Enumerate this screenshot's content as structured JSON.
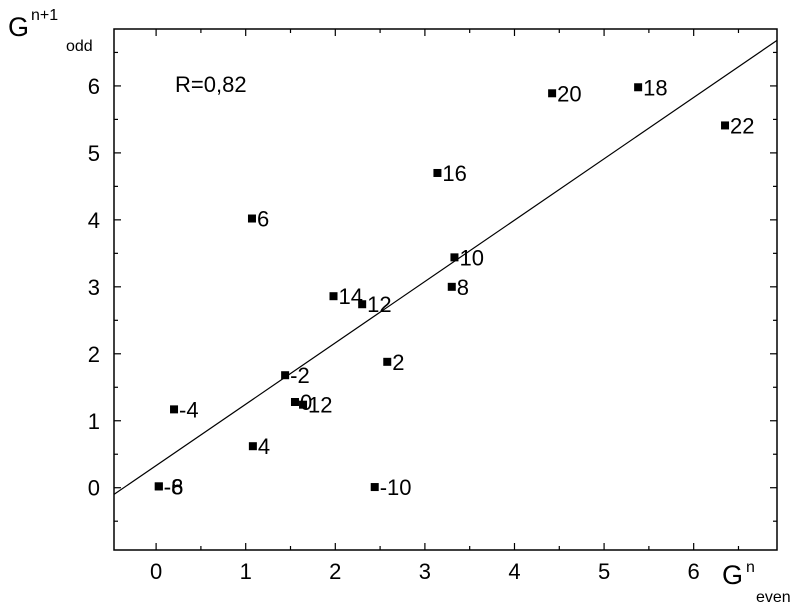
{
  "chart_data": {
    "type": "scatter",
    "title": "",
    "xlabel": {
      "main": "G",
      "sup": "n",
      "sub": "even"
    },
    "ylabel": {
      "main": "G",
      "sup": "n+1",
      "sub": "odd"
    },
    "xlim": [
      -0.47,
      6.93
    ],
    "ylim": [
      -0.93,
      6.85
    ],
    "xticks": [
      "0",
      "1",
      "2",
      "3",
      "4",
      "5",
      "6"
    ],
    "yticks": [
      "0",
      "1",
      "2",
      "3",
      "4",
      "5",
      "6"
    ],
    "annotation": "R=0,82",
    "fit_line": {
      "x": [
        -0.47,
        6.93
      ],
      "y": [
        -0.1,
        6.68
      ]
    },
    "points": [
      {
        "x": 0.03,
        "y": 0.02,
        "label": "-8"
      },
      {
        "x": 0.03,
        "y": 0.02,
        "label": "-6"
      },
      {
        "x": 0.2,
        "y": 1.17,
        "label": "-4"
      },
      {
        "x": 1.08,
        "y": 0.62,
        "label": "4"
      },
      {
        "x": 1.07,
        "y": 4.02,
        "label": "6"
      },
      {
        "x": 1.44,
        "y": 1.68,
        "label": "-2"
      },
      {
        "x": 1.55,
        "y": 1.28,
        "label": "0"
      },
      {
        "x": 1.64,
        "y": 1.24,
        "label": "12"
      },
      {
        "x": 1.98,
        "y": 2.86,
        "label": "14"
      },
      {
        "x": 2.3,
        "y": 2.74,
        "label": "12"
      },
      {
        "x": 2.44,
        "y": 0.01,
        "label": "-10"
      },
      {
        "x": 2.58,
        "y": 1.88,
        "label": "2"
      },
      {
        "x": 3.14,
        "y": 4.7,
        "label": "16"
      },
      {
        "x": 3.3,
        "y": 3.0,
        "label": "8"
      },
      {
        "x": 3.33,
        "y": 3.44,
        "label": "10"
      },
      {
        "x": 4.42,
        "y": 5.89,
        "label": "20"
      },
      {
        "x": 5.38,
        "y": 5.98,
        "label": "18"
      },
      {
        "x": 6.35,
        "y": 5.41,
        "label": "22"
      }
    ]
  }
}
